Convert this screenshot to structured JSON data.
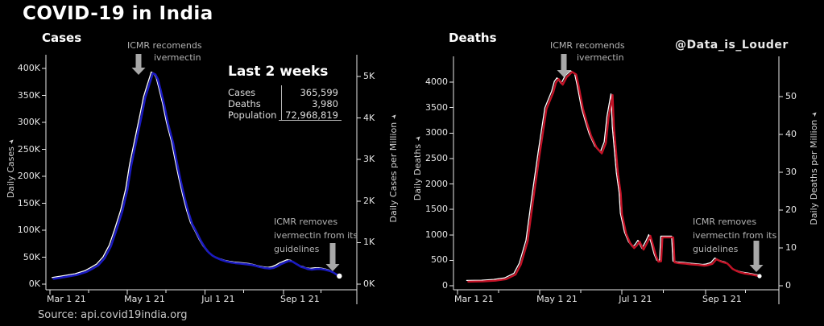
{
  "header": {
    "title": "COVID-19 in India"
  },
  "credit": "@Data_is_Louder",
  "source": "Source: api.covid19india.org",
  "stats_panel": {
    "title": "Last 2 weeks",
    "rows": [
      {
        "label": "Cases",
        "value": "365,599"
      },
      {
        "label": "Deaths",
        "value": "3,980"
      },
      {
        "label": "Population",
        "value": "72,968,819"
      }
    ]
  },
  "annotations": {
    "recommends": {
      "line1": "ICMR recomends",
      "line2": "ivermectin"
    },
    "removes": {
      "line1": "ICMR removes",
      "line2": "ivermectin from its",
      "line3": "guidelines"
    }
  },
  "icons": {
    "axis_arrow": "➤"
  },
  "colors": {
    "background": "#000000",
    "cases_line": "#1a1ac0",
    "deaths_line": "#c41226",
    "overlay_line": "#ffffff",
    "arrow": "#a8a8a8",
    "axis": "#e8e8e8",
    "annotation_text": "#b3b3b3"
  },
  "chart_data": [
    {
      "type": "line",
      "title": "Cases",
      "x_unit": "days since Mar 1 2021",
      "x_axis": {
        "tick_labels": [
          "Mar 1 21",
          "May 1 21",
          "Jul 1 21",
          "Sep 1 21"
        ],
        "tick_days": [
          0,
          61,
          122,
          184
        ],
        "minor_tick_days": [
          30.5,
          91.5,
          152.5,
          213.5
        ]
      },
      "left_axis": {
        "label": "Daily Cases",
        "tick_labels": [
          "0K",
          "50K",
          "100K",
          "150K",
          "200K",
          "250K",
          "300K",
          "350K",
          "400K"
        ],
        "tick_values": [
          0,
          50,
          100,
          150,
          200,
          250,
          300,
          350,
          400
        ],
        "unit": "thousands"
      },
      "right_axis": {
        "label": "Daily Cases per Million",
        "tick_labels": [
          "0K",
          "1K",
          "2K",
          "3K",
          "4K",
          "5K"
        ],
        "tick_values": [
          0,
          1,
          2,
          3,
          4,
          5
        ]
      },
      "series": [
        {
          "name": "Daily Cases",
          "color": "#1a1ac0",
          "unit": "thousands",
          "days": [
            3,
            11,
            21,
            29,
            33,
            38,
            43,
            48,
            52,
            57,
            61,
            64,
            68,
            72,
            75,
            78,
            80,
            81,
            83,
            85,
            87,
            90,
            93,
            97,
            100,
            103,
            106,
            109,
            112,
            116,
            119,
            122,
            125,
            128,
            131,
            135,
            139,
            143,
            146,
            150,
            154,
            158,
            162,
            165,
            169,
            173,
            176,
            179,
            182,
            186,
            188,
            191,
            193,
            196,
            198,
            201,
            203,
            206,
            210,
            213,
            216,
            218,
            221,
            223,
            225,
            227,
            228
          ],
          "values": [
            10,
            13,
            17,
            23,
            28,
            35,
            48,
            70,
            98,
            135,
            175,
            220,
            265,
            310,
            345,
            368,
            383,
            391,
            389,
            380,
            362,
            333,
            298,
            262,
            226,
            192,
            161,
            134,
            112,
            94,
            80,
            68,
            59,
            53,
            49,
            45,
            42,
            40,
            39,
            38,
            37,
            36,
            34,
            32,
            30,
            29,
            30,
            33,
            37,
            41,
            43,
            42,
            39,
            35,
            32,
            30,
            28,
            27,
            28,
            28,
            27,
            26,
            24,
            22,
            19,
            16,
            15
          ]
        },
        {
          "name": "Daily Cases per Million",
          "color": "#ffffff",
          "note": "white line visually coincides with Daily Cases line"
        }
      ]
    },
    {
      "type": "line",
      "title": "Deaths",
      "x_unit": "days since Mar 1 2021",
      "x_axis": {
        "tick_labels": [
          "Mar 1 21",
          "May 1 21",
          "Jul 1 21",
          "Sep 1 21"
        ],
        "tick_days": [
          0,
          61,
          122,
          184
        ],
        "minor_tick_days": [
          30.5,
          91.5,
          152.5,
          213.5
        ]
      },
      "left_axis": {
        "label": "Daily Deaths",
        "tick_labels": [
          "0",
          "500",
          "1000",
          "1500",
          "2000",
          "2500",
          "3000",
          "3500",
          "4000"
        ],
        "tick_values": [
          0,
          500,
          1000,
          1500,
          2000,
          2500,
          3000,
          3500,
          4000
        ],
        "unit": "deaths"
      },
      "right_axis": {
        "label": "Daily Deaths per Million",
        "tick_labels": [
          "0",
          "10",
          "20",
          "30",
          "40",
          "50"
        ],
        "tick_values": [
          0,
          10,
          20,
          30,
          40,
          50
        ]
      },
      "series": [
        {
          "name": "Daily Deaths",
          "color": "#c41226",
          "unit": "deaths",
          "days": [
            8,
            19,
            28,
            36,
            43,
            47,
            52,
            56,
            61,
            66,
            71,
            73,
            75,
            78,
            81,
            85,
            88,
            90,
            93,
            96,
            99,
            103,
            107,
            110,
            112,
            115,
            116,
            119,
            121,
            122,
            125,
            128,
            131,
            133,
            135,
            137,
            138,
            141,
            143,
            145,
            147,
            149,
            151,
            152,
            160,
            161,
            164,
            169,
            173,
            178,
            183,
            185,
            189,
            192,
            195,
            197,
            200,
            202,
            204,
            207,
            210,
            213,
            216,
            219,
            222,
            224
          ],
          "values": [
            80,
            85,
            100,
            130,
            220,
            420,
            870,
            1660,
            2600,
            3475,
            3800,
            3990,
            4060,
            3950,
            4100,
            4200,
            4150,
            3900,
            3480,
            3200,
            2950,
            2720,
            2600,
            2800,
            3300,
            3745,
            3100,
            2200,
            1815,
            1400,
            1030,
            840,
            740,
            790,
            870,
            760,
            710,
            860,
            980,
            800,
            600,
            475,
            480,
            950,
            950,
            460,
            445,
            435,
            420,
            410,
            395,
            400,
            430,
            520,
            480,
            460,
            440,
            390,
            330,
            290,
            260,
            240,
            230,
            215,
            200,
            190
          ]
        },
        {
          "name": "Daily Deaths per Million",
          "color": "#ffffff",
          "note": "white line visually coincides with Daily Deaths line"
        }
      ]
    }
  ]
}
